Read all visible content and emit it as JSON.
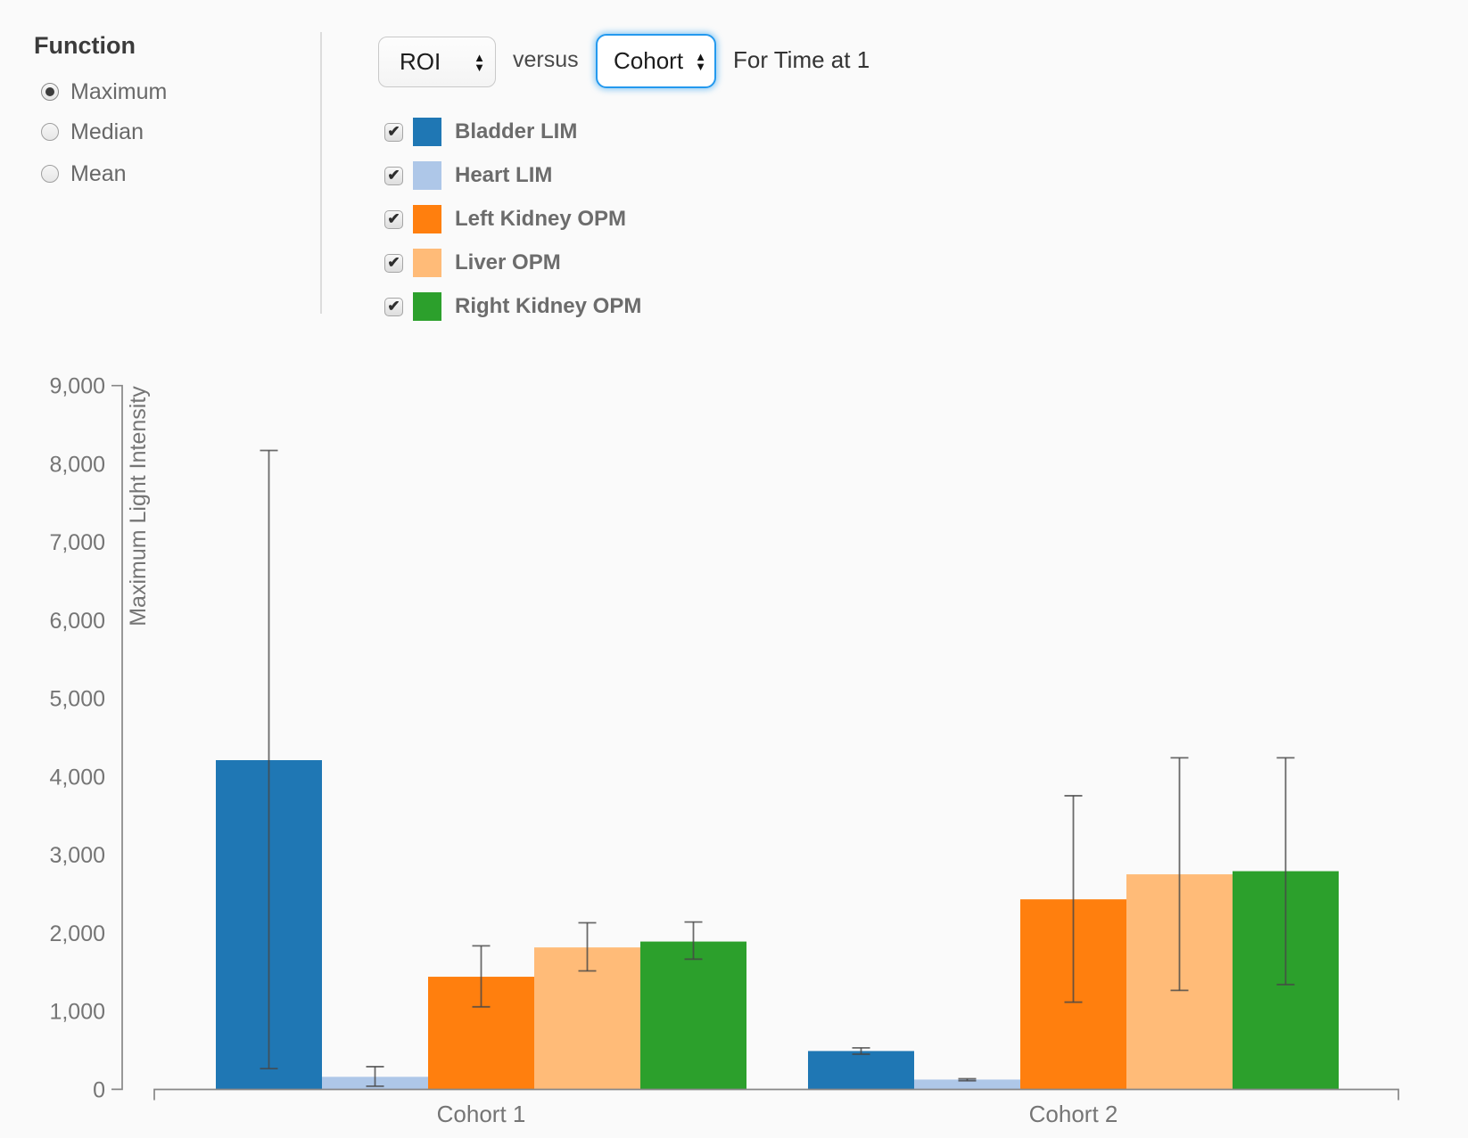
{
  "function_panel": {
    "title": "Function",
    "options": [
      {
        "label": "Maximum",
        "selected": true
      },
      {
        "label": "Median",
        "selected": false
      },
      {
        "label": "Mean",
        "selected": false
      }
    ]
  },
  "controls": {
    "roi_value": "ROI",
    "versus_label": "versus",
    "cohort_value": "Cohort",
    "time_label": "For Time at 1"
  },
  "legend": {
    "checked": [
      true,
      true,
      true,
      true,
      true
    ]
  },
  "icons": {
    "check": "✔",
    "spinner_up": "▲",
    "spinner_down": "▼"
  },
  "chart_data": {
    "type": "bar",
    "title": "",
    "categories": [
      "Cohort 1",
      "Cohort 2"
    ],
    "series": [
      {
        "name": "Bladder LIM",
        "color": "#1f77b4",
        "values": [
          4210,
          490
        ],
        "error_low": [
          265,
          450
        ],
        "error_high": [
          8170,
          530
        ]
      },
      {
        "name": "Heart LIM",
        "color": "#aec7e8",
        "values": [
          160,
          125
        ],
        "error_low": [
          40,
          110
        ],
        "error_high": [
          290,
          135
        ]
      },
      {
        "name": "Left Kidney OPM",
        "color": "#ff7f0e",
        "values": [
          1440,
          2430
        ],
        "error_low": [
          1055,
          1115
        ],
        "error_high": [
          1835,
          3755
        ]
      },
      {
        "name": "Liver OPM",
        "color": "#ffbb78",
        "values": [
          1815,
          2750
        ],
        "error_low": [
          1515,
          1265
        ],
        "error_high": [
          2130,
          4240
        ]
      },
      {
        "name": "Right Kidney OPM",
        "color": "#2ca02c",
        "values": [
          1890,
          2790
        ],
        "error_low": [
          1665,
          1340
        ],
        "error_high": [
          2140,
          4240
        ]
      }
    ],
    "xlabel": "",
    "ylabel": "Maximum Light Intensity",
    "ylim": [
      0,
      9000
    ],
    "ytick_step": 1000,
    "grid": false,
    "error_bars": true,
    "legend_position": "top-left"
  }
}
